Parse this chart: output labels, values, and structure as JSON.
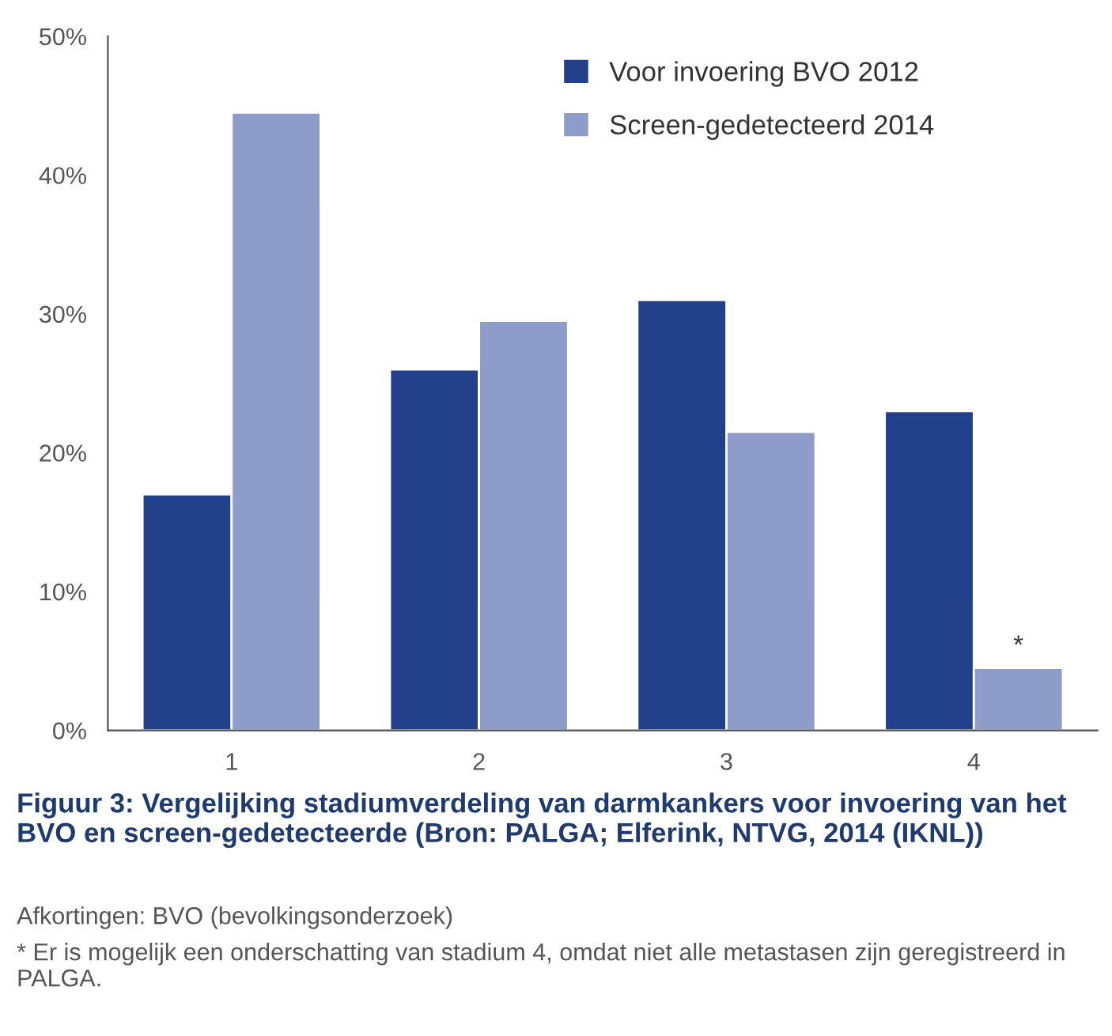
{
  "chart_data": {
    "type": "bar",
    "title": "Figuur 3: Vergelijking stadiumverdeling van darmkankers voor invoering van het BVO en screen-gedetecteerde (Bron: PALGA; Elferink, NTVG, 2014 (IKNL))",
    "categories": [
      "1",
      "2",
      "3",
      "4"
    ],
    "series": [
      {
        "name": "Voor invoering BVO 2012",
        "color": "#22418a",
        "values": [
          17,
          26,
          31,
          23
        ]
      },
      {
        "name": "Screen-gedetecteerd 2014",
        "color": "#8e9cc9",
        "values": [
          44.5,
          29.5,
          21.5,
          4.5
        ]
      }
    ],
    "ylim": [
      0,
      50
    ],
    "yticks": [
      {
        "value": 0,
        "label": "0%"
      },
      {
        "value": 10,
        "label": "10%"
      },
      {
        "value": 20,
        "label": "20%"
      },
      {
        "value": 30,
        "label": "30%"
      },
      {
        "value": 40,
        "label": "40%"
      },
      {
        "value": 50,
        "label": "50%"
      }
    ],
    "annotations": [
      {
        "text": "*",
        "x": "4",
        "y": 4.5
      },
      "Afkortingen: BVO (bevolkingsonderzoek)",
      "* Er is mogelijk een onderschatting van stadium 4, omdat niet alle metastasen zijn geregistreerd in PALGA."
    ],
    "legend": "top right",
    "grid": false
  }
}
